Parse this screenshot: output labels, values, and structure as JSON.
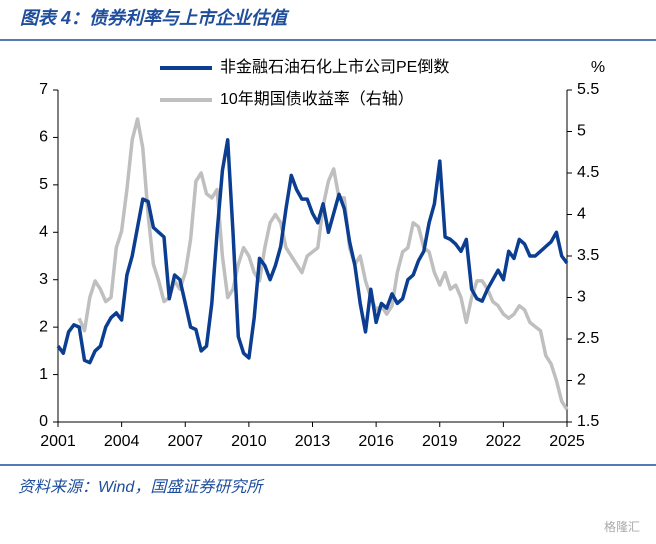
{
  "chart_data": {
    "type": "line",
    "title": "图表 4：债券利率与上市企业估值",
    "source": "资料来源：Wind，国盛证券研究所",
    "watermark": "格隆汇",
    "y2label": "%",
    "legend": "top",
    "x": [
      2001,
      2001.25,
      2001.5,
      2001.75,
      2002,
      2002.25,
      2002.5,
      2002.75,
      2003,
      2003.25,
      2003.5,
      2003.75,
      2004,
      2004.25,
      2004.5,
      2004.75,
      2005,
      2005.25,
      2005.5,
      2005.75,
      2006,
      2006.25,
      2006.5,
      2006.75,
      2007,
      2007.25,
      2007.5,
      2007.75,
      2008,
      2008.25,
      2008.5,
      2008.75,
      2009,
      2009.25,
      2009.5,
      2009.75,
      2010,
      2010.25,
      2010.5,
      2010.75,
      2011,
      2011.25,
      2011.5,
      2011.75,
      2012,
      2012.25,
      2012.5,
      2012.75,
      2013,
      2013.25,
      2013.5,
      2013.75,
      2014,
      2014.25,
      2014.5,
      2014.75,
      2015,
      2015.25,
      2015.5,
      2015.75,
      2016,
      2016.25,
      2016.5,
      2016.75,
      2017,
      2017.25,
      2017.5,
      2017.75,
      2018,
      2018.25,
      2018.5,
      2018.75,
      2019,
      2019.25,
      2019.5,
      2019.75,
      2020,
      2020.25,
      2020.5,
      2020.75,
      2021,
      2021.25,
      2021.5,
      2021.75,
      2022,
      2022.25,
      2022.5,
      2022.75,
      2023,
      2023.25,
      2023.5,
      2023.75,
      2024,
      2024.25,
      2024.5,
      2024.75,
      2025
    ],
    "series": [
      {
        "name": "非金融石油石化上市公司PE倒数",
        "color": "#0b3d91",
        "axis": "y",
        "values": [
          1.6,
          1.45,
          1.9,
          2.05,
          2.0,
          1.3,
          1.25,
          1.5,
          1.6,
          2.0,
          2.2,
          2.3,
          2.15,
          3.1,
          3.5,
          4.1,
          4.7,
          4.65,
          4.1,
          4.0,
          3.9,
          2.6,
          3.1,
          3.0,
          2.5,
          2.0,
          1.95,
          1.5,
          1.6,
          2.5,
          4.0,
          5.3,
          5.95,
          4.0,
          1.8,
          1.45,
          1.35,
          2.2,
          3.45,
          3.3,
          3.0,
          3.3,
          3.7,
          4.5,
          5.2,
          4.9,
          4.7,
          4.7,
          4.4,
          4.2,
          4.6,
          4.0,
          4.4,
          4.8,
          4.5,
          3.8,
          3.3,
          2.5,
          1.9,
          2.8,
          2.1,
          2.5,
          2.4,
          2.7,
          2.5,
          2.6,
          3.0,
          3.1,
          3.4,
          3.6,
          4.2,
          4.6,
          5.5,
          3.9,
          3.85,
          3.75,
          3.6,
          3.85,
          2.8,
          2.6,
          2.55,
          2.8,
          3.0,
          3.2,
          3.0,
          3.6,
          3.45,
          3.85,
          3.75,
          3.5,
          3.5,
          3.6,
          3.7,
          3.8,
          4.0,
          3.5,
          3.35
        ]
      },
      {
        "name": "10年期国债收益率（右轴）",
        "color": "#bfbfbf",
        "axis": "y2",
        "values": [
          null,
          null,
          null,
          null,
          2.75,
          2.6,
          3.0,
          3.2,
          3.1,
          2.95,
          3.0,
          3.6,
          3.8,
          4.3,
          4.9,
          5.15,
          4.8,
          4.0,
          3.4,
          3.2,
          2.95,
          3.0,
          3.2,
          3.1,
          3.3,
          3.7,
          4.4,
          4.5,
          4.25,
          4.2,
          4.3,
          3.5,
          3.0,
          3.1,
          3.4,
          3.6,
          3.5,
          3.3,
          3.2,
          3.6,
          3.9,
          4.0,
          3.9,
          3.6,
          3.5,
          3.4,
          3.3,
          3.5,
          3.55,
          3.6,
          4.1,
          4.4,
          4.55,
          4.2,
          4.2,
          3.6,
          3.4,
          3.5,
          3.2,
          3.0,
          2.85,
          2.9,
          2.8,
          2.9,
          3.3,
          3.55,
          3.6,
          3.9,
          3.85,
          3.6,
          3.55,
          3.3,
          3.15,
          3.3,
          3.1,
          3.15,
          3.0,
          2.7,
          3.0,
          3.2,
          3.2,
          3.1,
          2.95,
          2.9,
          2.8,
          2.75,
          2.8,
          2.9,
          2.85,
          2.7,
          2.65,
          2.6,
          2.3,
          2.2,
          2.0,
          1.75,
          1.65
        ]
      }
    ],
    "xlim": [
      2001,
      2025
    ],
    "xticks": [
      2001,
      2004,
      2007,
      2010,
      2013,
      2016,
      2019,
      2022,
      2025
    ],
    "ylim": [
      0,
      7
    ],
    "yticks": [
      0,
      1,
      2,
      3,
      4,
      5,
      6,
      7
    ],
    "y2lim": [
      1.5,
      5.5
    ],
    "y2ticks": [
      1.5,
      2,
      2.5,
      3,
      3.5,
      4,
      4.5,
      5,
      5.5
    ]
  }
}
